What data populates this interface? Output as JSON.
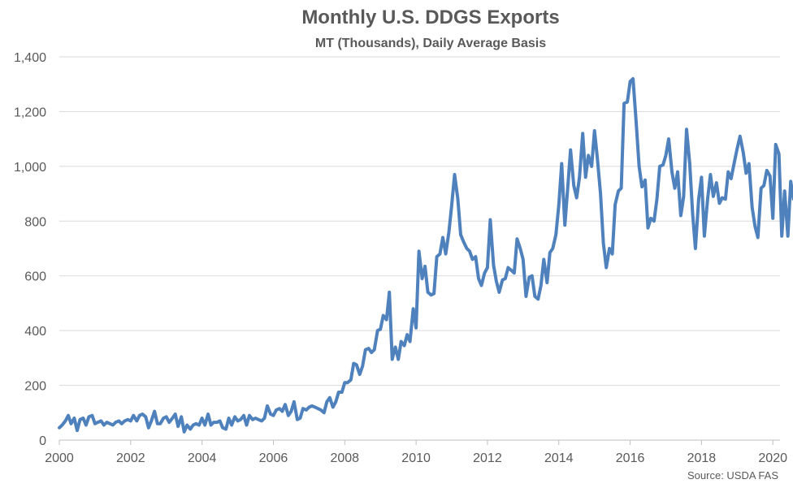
{
  "chart_data": {
    "type": "line",
    "title": "Monthly U.S. DDGS Exports",
    "subtitle": "MT (Thousands), Daily Average Basis",
    "source": "Source: USDA FAS",
    "xlabel": "",
    "ylabel": "",
    "xlim": [
      2000,
      2020.2
    ],
    "ylim": [
      0,
      1400
    ],
    "x_ticks": [
      2000,
      2002,
      2004,
      2006,
      2008,
      2010,
      2012,
      2014,
      2016,
      2018,
      2020
    ],
    "x_tick_labels": [
      "2000",
      "2002",
      "2004",
      "2006",
      "2008",
      "2010",
      "2012",
      "2014",
      "2016",
      "2018",
      "2020"
    ],
    "y_ticks": [
      0,
      200,
      400,
      600,
      800,
      1000,
      1200,
      1400
    ],
    "y_tick_labels": [
      "0",
      "200",
      "400",
      "600",
      "800",
      "1,000",
      "1,200",
      "1,400"
    ],
    "grid": "horizontal",
    "line_color": "#4F81BD",
    "series": [
      {
        "values": [
          [
            2000.0,
            45
          ],
          [
            2000.08,
            55
          ],
          [
            2000.17,
            70
          ],
          [
            2000.25,
            90
          ],
          [
            2000.33,
            60
          ],
          [
            2000.42,
            80
          ],
          [
            2000.5,
            35
          ],
          [
            2000.58,
            75
          ],
          [
            2000.67,
            80
          ],
          [
            2000.75,
            55
          ],
          [
            2000.83,
            85
          ],
          [
            2000.92,
            90
          ],
          [
            2001.0,
            60
          ],
          [
            2001.08,
            65
          ],
          [
            2001.17,
            70
          ],
          [
            2001.25,
            55
          ],
          [
            2001.33,
            65
          ],
          [
            2001.42,
            60
          ],
          [
            2001.5,
            55
          ],
          [
            2001.58,
            65
          ],
          [
            2001.67,
            70
          ],
          [
            2001.75,
            60
          ],
          [
            2001.83,
            70
          ],
          [
            2001.92,
            75
          ],
          [
            2002.0,
            70
          ],
          [
            2002.08,
            90
          ],
          [
            2002.17,
            70
          ],
          [
            2002.25,
            90
          ],
          [
            2002.33,
            95
          ],
          [
            2002.42,
            85
          ],
          [
            2002.5,
            45
          ],
          [
            2002.58,
            70
          ],
          [
            2002.67,
            105
          ],
          [
            2002.75,
            60
          ],
          [
            2002.83,
            60
          ],
          [
            2002.92,
            80
          ],
          [
            2003.0,
            85
          ],
          [
            2003.08,
            65
          ],
          [
            2003.17,
            80
          ],
          [
            2003.25,
            95
          ],
          [
            2003.33,
            50
          ],
          [
            2003.42,
            85
          ],
          [
            2003.5,
            30
          ],
          [
            2003.58,
            55
          ],
          [
            2003.67,
            40
          ],
          [
            2003.75,
            55
          ],
          [
            2003.83,
            60
          ],
          [
            2003.92,
            55
          ],
          [
            2004.0,
            80
          ],
          [
            2004.08,
            55
          ],
          [
            2004.17,
            95
          ],
          [
            2004.25,
            55
          ],
          [
            2004.33,
            65
          ],
          [
            2004.42,
            65
          ],
          [
            2004.5,
            70
          ],
          [
            2004.58,
            45
          ],
          [
            2004.67,
            40
          ],
          [
            2004.75,
            80
          ],
          [
            2004.83,
            55
          ],
          [
            2004.92,
            85
          ],
          [
            2005.0,
            70
          ],
          [
            2005.08,
            75
          ],
          [
            2005.17,
            90
          ],
          [
            2005.25,
            55
          ],
          [
            2005.33,
            90
          ],
          [
            2005.42,
            75
          ],
          [
            2005.5,
            80
          ],
          [
            2005.58,
            75
          ],
          [
            2005.67,
            70
          ],
          [
            2005.75,
            80
          ],
          [
            2005.83,
            125
          ],
          [
            2005.92,
            95
          ],
          [
            2006.0,
            90
          ],
          [
            2006.08,
            110
          ],
          [
            2006.17,
            115
          ],
          [
            2006.25,
            105
          ],
          [
            2006.33,
            130
          ],
          [
            2006.42,
            90
          ],
          [
            2006.5,
            105
          ],
          [
            2006.58,
            140
          ],
          [
            2006.67,
            75
          ],
          [
            2006.75,
            80
          ],
          [
            2006.83,
            115
          ],
          [
            2006.92,
            110
          ],
          [
            2007.0,
            120
          ],
          [
            2007.08,
            125
          ],
          [
            2007.17,
            120
          ],
          [
            2007.25,
            115
          ],
          [
            2007.33,
            110
          ],
          [
            2007.42,
            100
          ],
          [
            2007.5,
            140
          ],
          [
            2007.58,
            155
          ],
          [
            2007.67,
            120
          ],
          [
            2007.75,
            140
          ],
          [
            2007.83,
            175
          ],
          [
            2007.92,
            175
          ],
          [
            2008.0,
            210
          ],
          [
            2008.08,
            210
          ],
          [
            2008.17,
            220
          ],
          [
            2008.25,
            280
          ],
          [
            2008.33,
            275
          ],
          [
            2008.42,
            240
          ],
          [
            2008.5,
            270
          ],
          [
            2008.58,
            330
          ],
          [
            2008.67,
            335
          ],
          [
            2008.75,
            320
          ],
          [
            2008.83,
            330
          ],
          [
            2008.92,
            400
          ],
          [
            2009.0,
            405
          ],
          [
            2009.08,
            455
          ],
          [
            2009.17,
            440
          ],
          [
            2009.25,
            540
          ],
          [
            2009.33,
            295
          ],
          [
            2009.42,
            340
          ],
          [
            2009.5,
            295
          ],
          [
            2009.58,
            360
          ],
          [
            2009.67,
            345
          ],
          [
            2009.75,
            385
          ],
          [
            2009.83,
            360
          ],
          [
            2009.92,
            480
          ],
          [
            2010.0,
            410
          ],
          [
            2010.08,
            690
          ],
          [
            2010.17,
            590
          ],
          [
            2010.25,
            635
          ],
          [
            2010.33,
            540
          ],
          [
            2010.42,
            530
          ],
          [
            2010.5,
            535
          ],
          [
            2010.58,
            670
          ],
          [
            2010.67,
            680
          ],
          [
            2010.75,
            740
          ],
          [
            2010.83,
            680
          ],
          [
            2010.92,
            760
          ],
          [
            2011.0,
            860
          ],
          [
            2011.08,
            970
          ],
          [
            2011.17,
            880
          ],
          [
            2011.25,
            750
          ],
          [
            2011.33,
            725
          ],
          [
            2011.42,
            700
          ],
          [
            2011.5,
            690
          ],
          [
            2011.58,
            660
          ],
          [
            2011.67,
            670
          ],
          [
            2011.75,
            590
          ],
          [
            2011.83,
            565
          ],
          [
            2011.92,
            610
          ],
          [
            2012.0,
            630
          ],
          [
            2012.08,
            805
          ],
          [
            2012.17,
            640
          ],
          [
            2012.25,
            580
          ],
          [
            2012.33,
            540
          ],
          [
            2012.42,
            585
          ],
          [
            2012.5,
            590
          ],
          [
            2012.58,
            630
          ],
          [
            2012.67,
            620
          ],
          [
            2012.75,
            610
          ],
          [
            2012.83,
            735
          ],
          [
            2012.92,
            700
          ],
          [
            2013.0,
            660
          ],
          [
            2013.08,
            525
          ],
          [
            2013.17,
            595
          ],
          [
            2013.25,
            600
          ],
          [
            2013.33,
            525
          ],
          [
            2013.42,
            515
          ],
          [
            2013.5,
            565
          ],
          [
            2013.58,
            660
          ],
          [
            2013.67,
            575
          ],
          [
            2013.75,
            685
          ],
          [
            2013.83,
            700
          ],
          [
            2013.92,
            750
          ],
          [
            2014.0,
            860
          ],
          [
            2014.08,
            1010
          ],
          [
            2014.17,
            785
          ],
          [
            2014.25,
            920
          ],
          [
            2014.33,
            1060
          ],
          [
            2014.42,
            930
          ],
          [
            2014.5,
            885
          ],
          [
            2014.58,
            960
          ],
          [
            2014.67,
            1120
          ],
          [
            2014.75,
            960
          ],
          [
            2014.83,
            1040
          ],
          [
            2014.92,
            1000
          ],
          [
            2015.0,
            1130
          ],
          [
            2015.08,
            1030
          ],
          [
            2015.17,
            900
          ],
          [
            2015.25,
            720
          ],
          [
            2015.33,
            630
          ],
          [
            2015.42,
            700
          ],
          [
            2015.5,
            680
          ],
          [
            2015.58,
            860
          ],
          [
            2015.67,
            910
          ],
          [
            2015.75,
            920
          ],
          [
            2015.83,
            1230
          ],
          [
            2015.92,
            1235
          ],
          [
            2016.0,
            1310
          ],
          [
            2016.08,
            1320
          ],
          [
            2016.17,
            1160
          ],
          [
            2016.25,
            1000
          ],
          [
            2016.33,
            925
          ],
          [
            2016.42,
            950
          ],
          [
            2016.5,
            775
          ],
          [
            2016.58,
            810
          ],
          [
            2016.67,
            800
          ],
          [
            2016.75,
            880
          ],
          [
            2016.83,
            1000
          ],
          [
            2016.92,
            1005
          ],
          [
            2017.0,
            1040
          ],
          [
            2017.08,
            1100
          ],
          [
            2017.17,
            980
          ],
          [
            2017.25,
            920
          ],
          [
            2017.33,
            980
          ],
          [
            2017.42,
            820
          ],
          [
            2017.5,
            890
          ],
          [
            2017.58,
            1135
          ],
          [
            2017.67,
            1010
          ],
          [
            2017.75,
            830
          ],
          [
            2017.83,
            700
          ],
          [
            2017.92,
            880
          ],
          [
            2018.0,
            960
          ],
          [
            2018.08,
            745
          ],
          [
            2018.17,
            880
          ],
          [
            2018.25,
            970
          ],
          [
            2018.33,
            890
          ],
          [
            2018.42,
            940
          ],
          [
            2018.5,
            865
          ],
          [
            2018.58,
            885
          ],
          [
            2018.67,
            880
          ],
          [
            2018.75,
            980
          ],
          [
            2018.83,
            955
          ],
          [
            2018.92,
            1015
          ],
          [
            2019.0,
            1065
          ],
          [
            2019.08,
            1110
          ],
          [
            2019.17,
            1050
          ],
          [
            2019.25,
            975
          ],
          [
            2019.33,
            1010
          ],
          [
            2019.42,
            850
          ],
          [
            2019.5,
            780
          ],
          [
            2019.58,
            740
          ],
          [
            2019.67,
            920
          ],
          [
            2019.75,
            930
          ],
          [
            2019.83,
            985
          ],
          [
            2019.92,
            965
          ],
          [
            2020.0,
            810
          ],
          [
            2020.08,
            1080
          ],
          [
            2020.17,
            1045
          ],
          [
            2020.25,
            745
          ],
          [
            2020.33,
            910
          ],
          [
            2020.42,
            745
          ],
          [
            2020.5,
            945
          ],
          [
            2020.58,
            880
          ],
          [
            2020.67,
            870
          ]
        ]
      }
    ]
  }
}
